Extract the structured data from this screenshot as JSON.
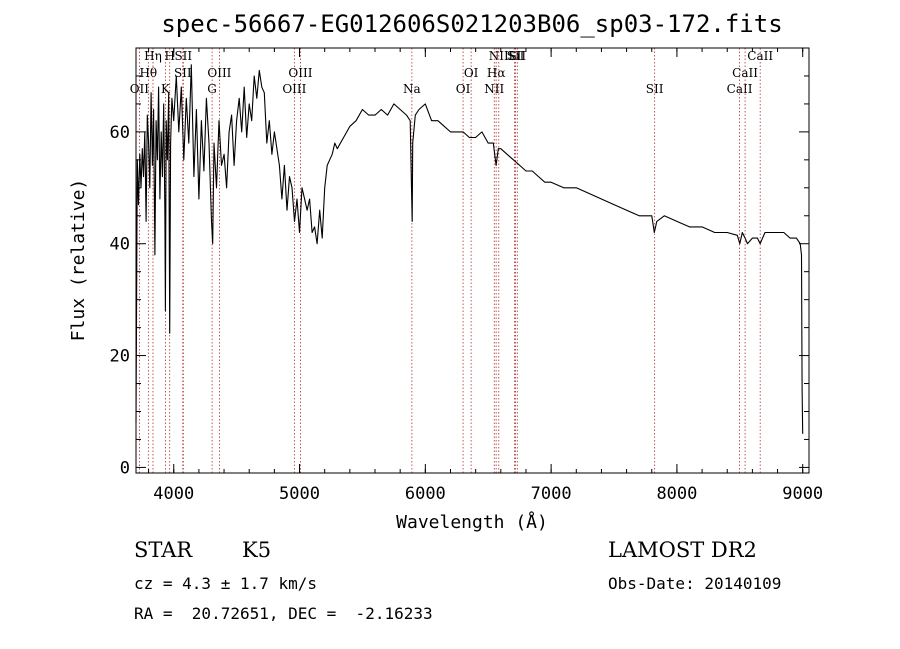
{
  "chart_data": {
    "type": "line",
    "title": "spec-56667-EG012606S021203B06_sp03-172.fits",
    "xlabel": "Wavelength (Å)",
    "ylabel": "Flux (relative)",
    "xlim": [
      3700,
      9050
    ],
    "ylim": [
      -1,
      75
    ],
    "xticks": [
      4000,
      5000,
      6000,
      7000,
      8000,
      9000
    ],
    "yticks": [
      0,
      20,
      40,
      60
    ],
    "grid": false,
    "spectral_lines": [
      {
        "label": "OII",
        "wavelength": 3727
      },
      {
        "label": "Hθ",
        "wavelength": 3798
      },
      {
        "label": "Hη",
        "wavelength": 3835
      },
      {
        "label": "K",
        "wavelength": 3934
      },
      {
        "label": "H",
        "wavelength": 3968
      },
      {
        "label": "SII",
        "wavelength": 4072
      },
      {
        "label": "SII",
        "wavelength": 4076
      },
      {
        "label": "G",
        "wavelength": 4305
      },
      {
        "label": "OIII",
        "wavelength": 4363
      },
      {
        "label": "OIII",
        "wavelength": 4959
      },
      {
        "label": "OIII",
        "wavelength": 5007
      },
      {
        "label": "Na",
        "wavelength": 5893
      },
      {
        "label": "OI",
        "wavelength": 6300
      },
      {
        "label": "OI",
        "wavelength": 6364
      },
      {
        "label": "NII",
        "wavelength": 6548
      },
      {
        "label": "Hα",
        "wavelength": 6563
      },
      {
        "label": "NII",
        "wavelength": 6584
      },
      {
        "label": "Li",
        "wavelength": 6708
      },
      {
        "label": "SII",
        "wavelength": 6717
      },
      {
        "label": "SII",
        "wavelength": 6731
      },
      {
        "label": "SII",
        "wavelength": 7823
      },
      {
        "label": "CaII",
        "wavelength": 8498
      },
      {
        "label": "CaII",
        "wavelength": 8542
      },
      {
        "label": "CaII",
        "wavelength": 8662
      }
    ],
    "series": [
      {
        "x": [
          3700,
          3710,
          3720,
          3730,
          3740,
          3750,
          3760,
          3770,
          3780,
          3790,
          3800,
          3810,
          3820,
          3830,
          3840,
          3850,
          3860,
          3870,
          3880,
          3890,
          3900,
          3910,
          3920,
          3930,
          3934,
          3940,
          3950,
          3960,
          3968,
          3975,
          3985,
          4000,
          4020,
          4040,
          4060,
          4080,
          4100,
          4120,
          4140,
          4160,
          4180,
          4200,
          4220,
          4240,
          4260,
          4280,
          4300,
          4310,
          4320,
          4340,
          4360,
          4380,
          4400,
          4420,
          4440,
          4460,
          4480,
          4500,
          4520,
          4540,
          4560,
          4580,
          4600,
          4620,
          4640,
          4660,
          4680,
          4700,
          4720,
          4740,
          4760,
          4780,
          4800,
          4820,
          4840,
          4860,
          4880,
          4900,
          4920,
          4940,
          4960,
          4980,
          5000,
          5020,
          5040,
          5060,
          5080,
          5100,
          5120,
          5140,
          5160,
          5180,
          5200,
          5220,
          5240,
          5260,
          5280,
          5300,
          5350,
          5400,
          5450,
          5500,
          5550,
          5600,
          5650,
          5700,
          5750,
          5800,
          5850,
          5880,
          5890,
          5896,
          5900,
          5920,
          5950,
          6000,
          6050,
          6100,
          6150,
          6200,
          6250,
          6300,
          6350,
          6400,
          6450,
          6500,
          6540,
          6563,
          6580,
          6600,
          6650,
          6700,
          6750,
          6800,
          6850,
          6900,
          6950,
          7000,
          7100,
          7200,
          7300,
          7400,
          7500,
          7600,
          7700,
          7800,
          7820,
          7840,
          7900,
          8000,
          8100,
          8200,
          8300,
          8400,
          8480,
          8500,
          8520,
          8542,
          8560,
          8600,
          8640,
          8662,
          8680,
          8700,
          8750,
          8800,
          8850,
          8900,
          8950,
          8980,
          8990,
          8995,
          9000
        ],
        "y": [
          8,
          55,
          47,
          56,
          50,
          57,
          52,
          60,
          44,
          63,
          58,
          50,
          67,
          54,
          64,
          38,
          62,
          55,
          68,
          48,
          60,
          52,
          65,
          45,
          28,
          62,
          55,
          67,
          24,
          58,
          66,
          62,
          70,
          60,
          68,
          55,
          66,
          58,
          72,
          52,
          64,
          48,
          62,
          53,
          66,
          58,
          44,
          40,
          58,
          50,
          62,
          54,
          56,
          50,
          60,
          63,
          54,
          62,
          66,
          60,
          68,
          59,
          65,
          62,
          70,
          66,
          71,
          68,
          67,
          58,
          62,
          56,
          60,
          57,
          54,
          48,
          54,
          46,
          52,
          50,
          44,
          48,
          42,
          50,
          48,
          46,
          48,
          42,
          43,
          40,
          46,
          41,
          50,
          54,
          55,
          56,
          58,
          57,
          59,
          61,
          62,
          64,
          63,
          63,
          64,
          63,
          65,
          64,
          63,
          62,
          50,
          44,
          58,
          63,
          64,
          65,
          62,
          62,
          61,
          60,
          60,
          60,
          59,
          59,
          60,
          58,
          58,
          54,
          57,
          57,
          56,
          55,
          54,
          53,
          53,
          52,
          51,
          51,
          50,
          50,
          49,
          48,
          47,
          46,
          45,
          45,
          42,
          44,
          45,
          44,
          43,
          43,
          42,
          42,
          41.5,
          40,
          42,
          41,
          40,
          41,
          41,
          40,
          41,
          42,
          42,
          42,
          42,
          41,
          41,
          40,
          38,
          14,
          6
        ]
      }
    ]
  },
  "info": {
    "object_class": "STAR",
    "subclass": "K5",
    "survey": "LAMOST DR2",
    "cz": "cz = 4.3 ± 1.7 km/s",
    "obs_date": "Obs-Date: 20140109",
    "coords": "RA =  20.72651, DEC =  -2.16233"
  }
}
